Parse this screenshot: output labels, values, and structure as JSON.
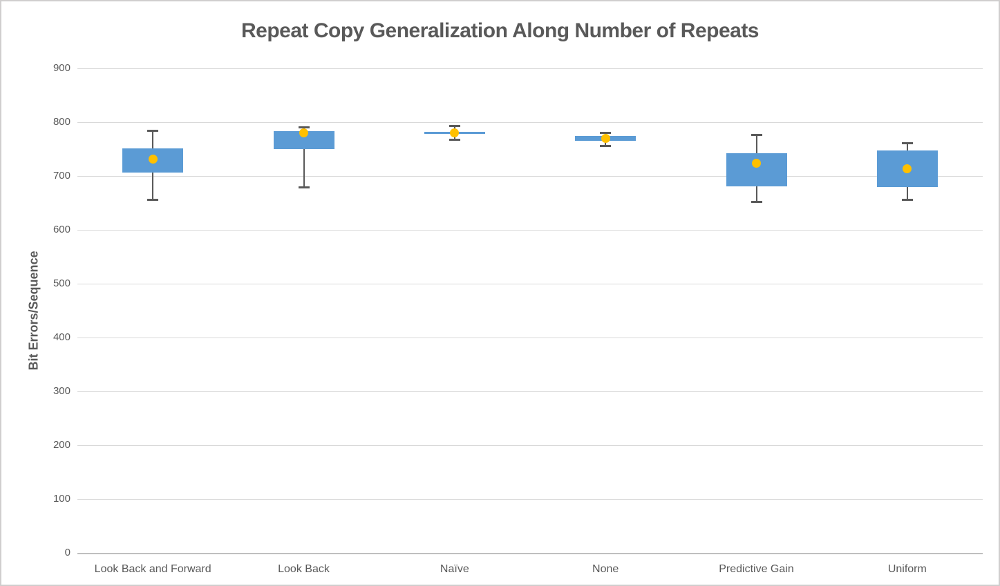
{
  "window": {
    "background": "#FFFFFF",
    "border_color": "#D0CECE"
  },
  "chart_data": {
    "type": "boxplot",
    "title": "Repeat Copy Generalization Along Number of Repeats",
    "ylabel": "Bit Errors/Sequence",
    "xlabel": "",
    "ylim": [
      0,
      900
    ],
    "yticks": [
      0,
      100,
      200,
      300,
      400,
      500,
      600,
      700,
      800,
      900
    ],
    "grid": true,
    "legend": false,
    "median_line_visible": false,
    "categories": [
      "Look Back and Forward",
      "Look Back",
      "Naïve",
      "None",
      "Predictive Gain",
      "Uniform"
    ],
    "boxes": [
      {
        "category": "Look Back and Forward",
        "whisker_low": 657,
        "q1": 706,
        "q3": 751,
        "whisker_high": 784,
        "mean": 732
      },
      {
        "category": "Look Back",
        "whisker_low": 680,
        "q1": 750,
        "q3": 783,
        "whisker_high": 791,
        "mean": 780
      },
      {
        "category": "Naïve",
        "whisker_low": 768,
        "q1": 778,
        "q3": 782,
        "whisker_high": 793,
        "mean": 780
      },
      {
        "category": "None",
        "whisker_low": 756,
        "q1": 766,
        "q3": 774,
        "whisker_high": 781,
        "mean": 770
      },
      {
        "category": "Predictive Gain",
        "whisker_low": 652,
        "q1": 681,
        "q3": 742,
        "whisker_high": 777,
        "mean": 724
      },
      {
        "category": "Uniform",
        "whisker_low": 657,
        "q1": 680,
        "q3": 747,
        "whisker_high": 762,
        "mean": 714
      }
    ],
    "colors": {
      "box_fill": "#5B9BD5",
      "mean_dot": "#FFC000",
      "whisker": "#595959",
      "gridline": "#D9D9D9",
      "axis_line": "#BFBFBF",
      "text": "#595959"
    }
  }
}
